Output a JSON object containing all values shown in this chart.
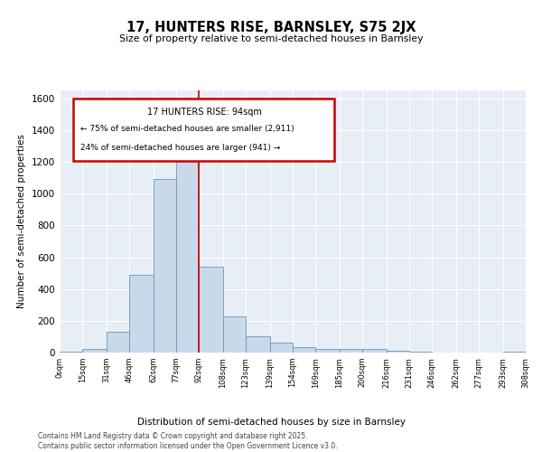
{
  "title": "17, HUNTERS RISE, BARNSLEY, S75 2JX",
  "subtitle": "Size of property relative to semi-detached houses in Barnsley",
  "xlabel": "Distribution of semi-detached houses by size in Barnsley",
  "ylabel": "Number of semi-detached properties",
  "bar_color": "#c8d9ea",
  "bar_edge_color": "#6699bb",
  "background_color": "#e8eef6",
  "grid_color": "#ffffff",
  "vline_color": "#cc0000",
  "vline_x": 92,
  "annotation_title": "17 HUNTERS RISE: 94sqm",
  "annotation_line1": "← 75% of semi-detached houses are smaller (2,911)",
  "annotation_line2": "24% of semi-detached houses are larger (941) →",
  "footer1": "Contains HM Land Registry data © Crown copyright and database right 2025.",
  "footer2": "Contains public sector information licensed under the Open Government Licence v3.0.",
  "bins": [
    0,
    15,
    31,
    46,
    62,
    77,
    92,
    108,
    123,
    139,
    154,
    169,
    185,
    200,
    216,
    231,
    246,
    262,
    277,
    293,
    308
  ],
  "bin_labels": [
    "0sqm",
    "15sqm",
    "31sqm",
    "46sqm",
    "62sqm",
    "77sqm",
    "92sqm",
    "108sqm",
    "123sqm",
    "139sqm",
    "154sqm",
    "169sqm",
    "185sqm",
    "200sqm",
    "216sqm",
    "231sqm",
    "246sqm",
    "262sqm",
    "277sqm",
    "293sqm",
    "308sqm"
  ],
  "counts": [
    5,
    22,
    130,
    490,
    1090,
    1260,
    540,
    230,
    100,
    60,
    35,
    25,
    25,
    25,
    10,
    5,
    2,
    2,
    0,
    8
  ],
  "ylim": [
    0,
    1650
  ],
  "yticks": [
    0,
    200,
    400,
    600,
    800,
    1000,
    1200,
    1400,
    1600
  ]
}
